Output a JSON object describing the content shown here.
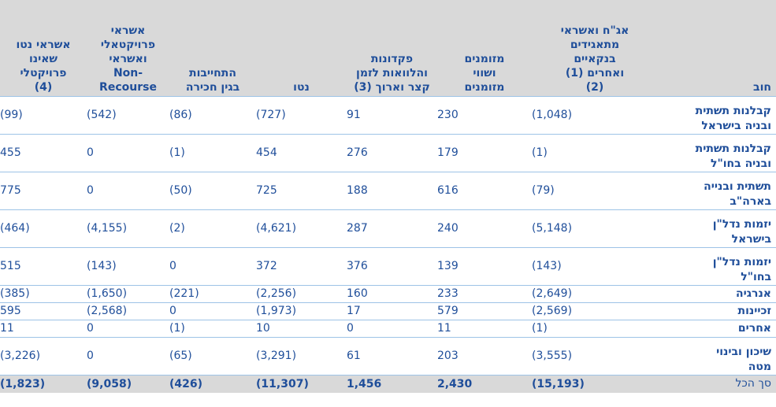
{
  "headers": {
    "debt": "חוב",
    "guarantees": "אג\"ח ואשראי\nמתאגידים\nבנקאיים\nואחרים (1)\n(2)",
    "cash": "מזומנים\nושווי\nמזומנים",
    "deposits": "פקדונות\nוהלוואות לזמן\nקצר וארוך (3)",
    "net": "נטו",
    "acquisition": "התחייבות\nבגין חכירה",
    "project_credit": "אשראי פרויקטאלי\nואשראי\nNon-Recourse",
    "net_credit": "אשראי נטו\nשאינו\nפרויקטלי\n(4)"
  },
  "rows": [
    {
      "label": "קבלנות תשתית\nובניה בישראל",
      "guarantees": "(1,048)",
      "cash": "230",
      "deposits": "91",
      "net": "(727)",
      "acquisition": "(86)",
      "project_credit": "(542)",
      "net_credit": "(99)"
    },
    {
      "label": "קבלנות תשתית\nובניה בחו\"ל",
      "guarantees": "(1)",
      "cash": "179",
      "deposits": "276",
      "net": "454",
      "acquisition": "(1)",
      "project_credit": "0",
      "net_credit": "455"
    },
    {
      "label": "תשתית ובנייה\nבארה\"ב",
      "guarantees": "(79)",
      "cash": "616",
      "deposits": "188",
      "net": "725",
      "acquisition": "(50)",
      "project_credit": "0",
      "net_credit": "775"
    },
    {
      "label": "יזמות נדל\"ן\nבישראל",
      "guarantees": "(5,148)",
      "cash": "240",
      "deposits": "287",
      "net": "(4,621)",
      "acquisition": "(2)",
      "project_credit": "(4,155)",
      "net_credit": "(464)"
    },
    {
      "label": "יזמות נדל\"ן\nבחו\"ל",
      "guarantees": "(143)",
      "cash": "139",
      "deposits": "376",
      "net": "372",
      "acquisition": "0",
      "project_credit": "(143)",
      "net_credit": "515"
    },
    {
      "label": "אנרגיה",
      "guarantees": "(2,649)",
      "cash": "233",
      "deposits": "160",
      "net": "(2,256)",
      "acquisition": "(221)",
      "project_credit": "(1,650)",
      "net_credit": "(385)"
    },
    {
      "label": "זכיינות",
      "guarantees": "(2,569)",
      "cash": "579",
      "deposits": "17",
      "net": "(1,973)",
      "acquisition": "0",
      "project_credit": "(2,568)",
      "net_credit": "595"
    },
    {
      "label": "אחרים",
      "guarantees": "(1)",
      "cash": "11",
      "deposits": "0",
      "net": "10",
      "acquisition": "(1)",
      "project_credit": "0",
      "net_credit": "11"
    },
    {
      "label": "שיכון ובינוי\nמטה",
      "guarantees": "(3,555)",
      "cash": "203",
      "deposits": "61",
      "net": "(3,291)",
      "acquisition": "(65)",
      "project_credit": "0",
      "net_credit": "(3,226)"
    }
  ],
  "total": {
    "label": "סך הכל",
    "guarantees": "(15,193)",
    "cash": "2,430",
    "deposits": "1,456",
    "net": "(11,307)",
    "acquisition": "(426)",
    "project_credit": "(9,058)",
    "net_credit": "(1,823)"
  }
}
